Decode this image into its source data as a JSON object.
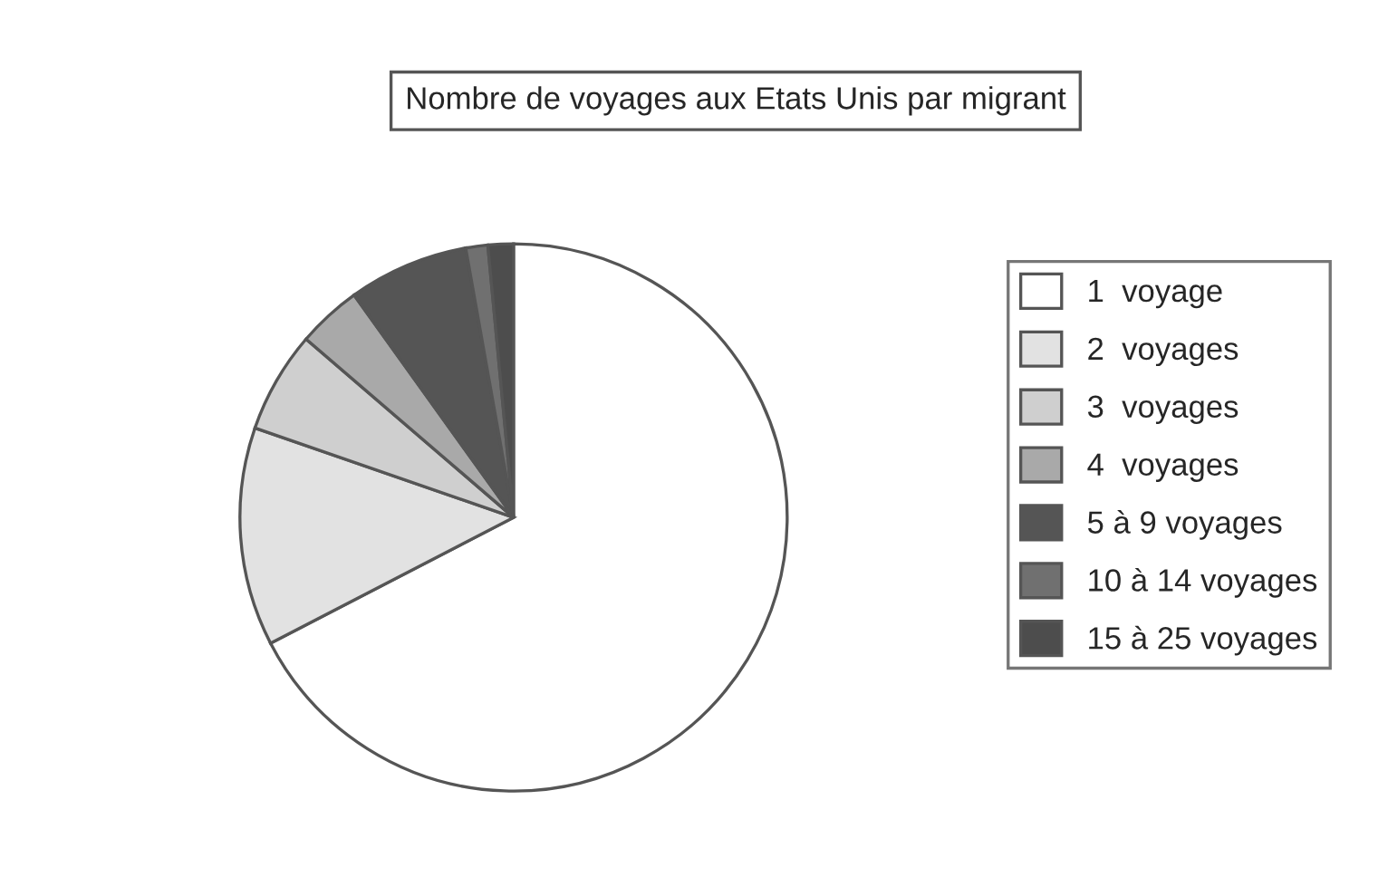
{
  "chart_data": {
    "type": "pie",
    "title": "Nombre de voyages aux Etats Unis par migrant",
    "categories": [
      "1  voyage",
      "2  voyages",
      "3  voyages",
      "4  voyages",
      "5 à 9 voyages",
      "10 à 14 voyages",
      "15 à 25 voyages"
    ],
    "values": [
      67.4,
      12.9,
      6.0,
      3.8,
      7.1,
      1.3,
      1.5
    ],
    "colors": [
      "#ffffff",
      "#e2e2e2",
      "#cfcfcf",
      "#a9a9a9",
      "#555555",
      "#707070",
      "#4d4d4d"
    ],
    "legend": "right"
  }
}
